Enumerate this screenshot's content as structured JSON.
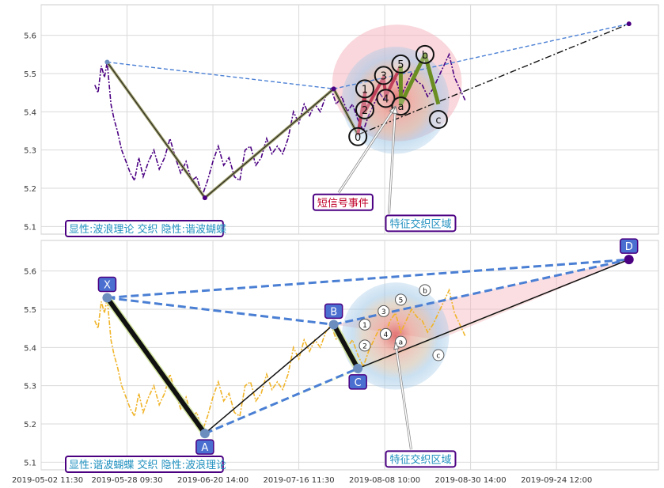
{
  "chart_data": [
    {
      "type": "line",
      "panel": "top",
      "ylim": [
        5.08,
        5.68
      ],
      "yticks": [
        5.1,
        5.2,
        5.3,
        5.4,
        5.5,
        5.6
      ],
      "grid": true,
      "price_color": "#4b0082",
      "price": [
        [
          0,
          5.47
        ],
        [
          0.6,
          5.45
        ],
        [
          1.2,
          5.52
        ],
        [
          1.8,
          5.49
        ],
        [
          2.3,
          5.53
        ],
        [
          3,
          5.42
        ],
        [
          3.6,
          5.38
        ],
        [
          4.2,
          5.35
        ],
        [
          5,
          5.3
        ],
        [
          5.8,
          5.27
        ],
        [
          6.6,
          5.24
        ],
        [
          7.4,
          5.22
        ],
        [
          8.2,
          5.28
        ],
        [
          9,
          5.23
        ],
        [
          10,
          5.27
        ],
        [
          11,
          5.3
        ],
        [
          12,
          5.25
        ],
        [
          13,
          5.28
        ],
        [
          14,
          5.33
        ],
        [
          15,
          5.28
        ],
        [
          16,
          5.24
        ],
        [
          17,
          5.27
        ],
        [
          18,
          5.22
        ],
        [
          19,
          5.23
        ],
        [
          20,
          5.18
        ],
        [
          21,
          5.22
        ],
        [
          22,
          5.27
        ],
        [
          23,
          5.31
        ],
        [
          24,
          5.26
        ],
        [
          25,
          5.28
        ],
        [
          26,
          5.23
        ],
        [
          27,
          5.22
        ],
        [
          28,
          5.3
        ],
        [
          29,
          5.31
        ],
        [
          30,
          5.26
        ],
        [
          31,
          5.28
        ],
        [
          32,
          5.33
        ],
        [
          33,
          5.29
        ],
        [
          34,
          5.31
        ],
        [
          35,
          5.29
        ],
        [
          36,
          5.33
        ],
        [
          37,
          5.4
        ],
        [
          38,
          5.37
        ],
        [
          39,
          5.42
        ],
        [
          40,
          5.39
        ],
        [
          41,
          5.42
        ],
        [
          42,
          5.4
        ],
        [
          43,
          5.44
        ],
        [
          44,
          5.46
        ],
        [
          45,
          5.42
        ],
        [
          46,
          5.44
        ],
        [
          47,
          5.4
        ],
        [
          48,
          5.42
        ],
        [
          49,
          5.38
        ],
        [
          50,
          5.35
        ],
        [
          51,
          5.39
        ],
        [
          52,
          5.42
        ],
        [
          53,
          5.45
        ],
        [
          54,
          5.43
        ],
        [
          55,
          5.47
        ],
        [
          56,
          5.49
        ],
        [
          57,
          5.44
        ],
        [
          58,
          5.47
        ],
        [
          59,
          5.5
        ],
        [
          60,
          5.48
        ],
        [
          61,
          5.47
        ],
        [
          62,
          5.44
        ],
        [
          63,
          5.46
        ],
        [
          64,
          5.49
        ],
        [
          65,
          5.52
        ],
        [
          66,
          5.55
        ],
        [
          67,
          5.49
        ],
        [
          68,
          5.46
        ],
        [
          69,
          5.43
        ]
      ],
      "harmonic_lines": [
        [
          [
            2.3,
            5.53
          ],
          [
            20.5,
            5.175
          ],
          [
            44.5,
            5.46
          ],
          [
            49,
            5.34
          ]
        ]
      ],
      "harmonic_line_color": "#999966",
      "top_dashed_line": [
        [
          2.3,
          5.53
        ],
        [
          44.5,
          5.46
        ],
        [
          99.5,
          5.63
        ]
      ],
      "dashdot_line": [
        [
          49,
          5.34
        ],
        [
          99.5,
          5.63
        ]
      ],
      "markers": [
        [
          2.3,
          5.53
        ],
        [
          20.5,
          5.175
        ],
        [
          44.5,
          5.46
        ],
        [
          99.5,
          5.63
        ]
      ],
      "waves": [
        {
          "label": "0",
          "x": 49,
          "y": 5.335
        },
        {
          "label": "1",
          "x": 50.3,
          "y": 5.46
        },
        {
          "label": "2",
          "x": 50.3,
          "y": 5.405
        },
        {
          "label": "3",
          "x": 53.8,
          "y": 5.495
        },
        {
          "label": "4",
          "x": 54.2,
          "y": 5.435
        },
        {
          "label": "5",
          "x": 57,
          "y": 5.525
        },
        {
          "label": "a",
          "x": 57,
          "y": 5.415
        },
        {
          "label": "b",
          "x": 61.5,
          "y": 5.55
        },
        {
          "label": "c",
          "x": 64,
          "y": 5.38
        }
      ],
      "wave_path_impulse": [
        [
          49,
          5.34
        ],
        [
          50.3,
          5.45
        ],
        [
          50.3,
          5.4
        ],
        [
          53.8,
          5.49
        ],
        [
          54.2,
          5.44
        ],
        [
          57,
          5.52
        ]
      ],
      "wave_path_correction": [
        [
          57,
          5.52
        ],
        [
          57,
          5.42
        ],
        [
          61.5,
          5.55
        ],
        [
          64,
          5.42
        ]
      ],
      "ellipse": {
        "cx": 56,
        "cy": 5.43,
        "rx": 10,
        "ry": 0.14
      },
      "annotations": [
        {
          "text": "短信号事件",
          "x": 41,
          "y": 5.155,
          "color": "#c0002a"
        },
        {
          "text": "特征交织区域",
          "x": 54.5,
          "y": 5.1,
          "color": "#1f8fbf"
        }
      ],
      "caption": "显性:波浪理论 交织 隐性:谐波蝴蝶"
    },
    {
      "type": "line",
      "panel": "bottom",
      "ylim": [
        5.08,
        5.68
      ],
      "yticks": [
        5.1,
        5.2,
        5.3,
        5.4,
        5.5,
        5.6
      ],
      "grid": true,
      "price_color": "#f0b429",
      "price": [
        [
          0,
          5.47
        ],
        [
          0.6,
          5.45
        ],
        [
          1.2,
          5.52
        ],
        [
          1.8,
          5.49
        ],
        [
          2.3,
          5.53
        ],
        [
          3,
          5.42
        ],
        [
          3.6,
          5.38
        ],
        [
          4.2,
          5.35
        ],
        [
          5,
          5.3
        ],
        [
          5.8,
          5.27
        ],
        [
          6.6,
          5.24
        ],
        [
          7.4,
          5.22
        ],
        [
          8.2,
          5.28
        ],
        [
          9,
          5.23
        ],
        [
          10,
          5.27
        ],
        [
          11,
          5.3
        ],
        [
          12,
          5.25
        ],
        [
          13,
          5.28
        ],
        [
          14,
          5.33
        ],
        [
          15,
          5.28
        ],
        [
          16,
          5.24
        ],
        [
          17,
          5.27
        ],
        [
          18,
          5.22
        ],
        [
          19,
          5.23
        ],
        [
          20,
          5.18
        ],
        [
          21,
          5.22
        ],
        [
          22,
          5.27
        ],
        [
          23,
          5.31
        ],
        [
          24,
          5.26
        ],
        [
          25,
          5.28
        ],
        [
          26,
          5.23
        ],
        [
          27,
          5.22
        ],
        [
          28,
          5.3
        ],
        [
          29,
          5.31
        ],
        [
          30,
          5.26
        ],
        [
          31,
          5.28
        ],
        [
          32,
          5.33
        ],
        [
          33,
          5.29
        ],
        [
          34,
          5.31
        ],
        [
          35,
          5.29
        ],
        [
          36,
          5.33
        ],
        [
          37,
          5.4
        ],
        [
          38,
          5.37
        ],
        [
          39,
          5.42
        ],
        [
          40,
          5.39
        ],
        [
          41,
          5.42
        ],
        [
          42,
          5.4
        ],
        [
          43,
          5.44
        ],
        [
          44,
          5.46
        ],
        [
          45,
          5.42
        ],
        [
          46,
          5.44
        ],
        [
          47,
          5.4
        ],
        [
          48,
          5.42
        ],
        [
          49,
          5.38
        ],
        [
          50,
          5.35
        ],
        [
          51,
          5.39
        ],
        [
          52,
          5.42
        ],
        [
          53,
          5.45
        ],
        [
          54,
          5.43
        ],
        [
          55,
          5.47
        ],
        [
          56,
          5.49
        ],
        [
          57,
          5.44
        ],
        [
          58,
          5.47
        ],
        [
          59,
          5.5
        ],
        [
          60,
          5.48
        ],
        [
          61,
          5.47
        ],
        [
          62,
          5.44
        ],
        [
          63,
          5.46
        ],
        [
          64,
          5.49
        ],
        [
          65,
          5.52
        ],
        [
          66,
          5.55
        ],
        [
          67,
          5.49
        ],
        [
          68,
          5.46
        ],
        [
          69,
          5.43
        ]
      ],
      "harmonic_points": [
        {
          "label": "X",
          "x": 2.3,
          "y": 5.53
        },
        {
          "label": "A",
          "x": 20.5,
          "y": 5.175
        },
        {
          "label": "B",
          "x": 44.5,
          "y": 5.46
        },
        {
          "label": "C",
          "x": 49,
          "y": 5.345
        },
        {
          "label": "D",
          "x": 99.5,
          "y": 5.63
        }
      ],
      "dashed_lines": [
        [
          [
            2.3,
            5.53
          ],
          [
            99.5,
            5.63
          ]
        ],
        [
          [
            2.3,
            5.53
          ],
          [
            44.5,
            5.46
          ]
        ],
        [
          [
            20.5,
            5.175
          ],
          [
            49,
            5.345
          ]
        ],
        [
          [
            44.5,
            5.46
          ],
          [
            99.5,
            5.63
          ]
        ]
      ],
      "waves": [
        {
          "label": "1",
          "x": 50.3,
          "y": 5.46
        },
        {
          "label": "2",
          "x": 50.3,
          "y": 5.405
        },
        {
          "label": "3",
          "x": 53.8,
          "y": 5.495
        },
        {
          "label": "4",
          "x": 54.2,
          "y": 5.435
        },
        {
          "label": "5",
          "x": 57,
          "y": 5.525
        },
        {
          "label": "a",
          "x": 57,
          "y": 5.415
        },
        {
          "label": "b",
          "x": 61.5,
          "y": 5.55
        },
        {
          "label": "c",
          "x": 64,
          "y": 5.38
        }
      ],
      "ellipse": {
        "cx": 56,
        "cy": 5.43,
        "rx": 10,
        "ry": 0.14
      },
      "annotations": [
        {
          "text": "特征交织区域",
          "x": 54.5,
          "y": 5.1,
          "color": "#1f8fbf"
        }
      ],
      "caption": "显性:谐波蝴蝶 交织 隐性:波浪理论"
    }
  ],
  "xaxis": {
    "range": [
      -10,
      105
    ],
    "ticks": [
      {
        "pos": -10,
        "label": "2019-05-02 11:30"
      },
      {
        "pos": 6,
        "label": "2019-05-28 09:30"
      },
      {
        "pos": 22,
        "label": "2019-06-20 14:00"
      },
      {
        "pos": 38,
        "label": "2019-07-16 11:30"
      },
      {
        "pos": 54,
        "label": "2019-08-08 10:00"
      },
      {
        "pos": 70,
        "label": "2019-08-30 14:00"
      },
      {
        "pos": 86,
        "label": "2019-09-24 12:00"
      }
    ]
  }
}
